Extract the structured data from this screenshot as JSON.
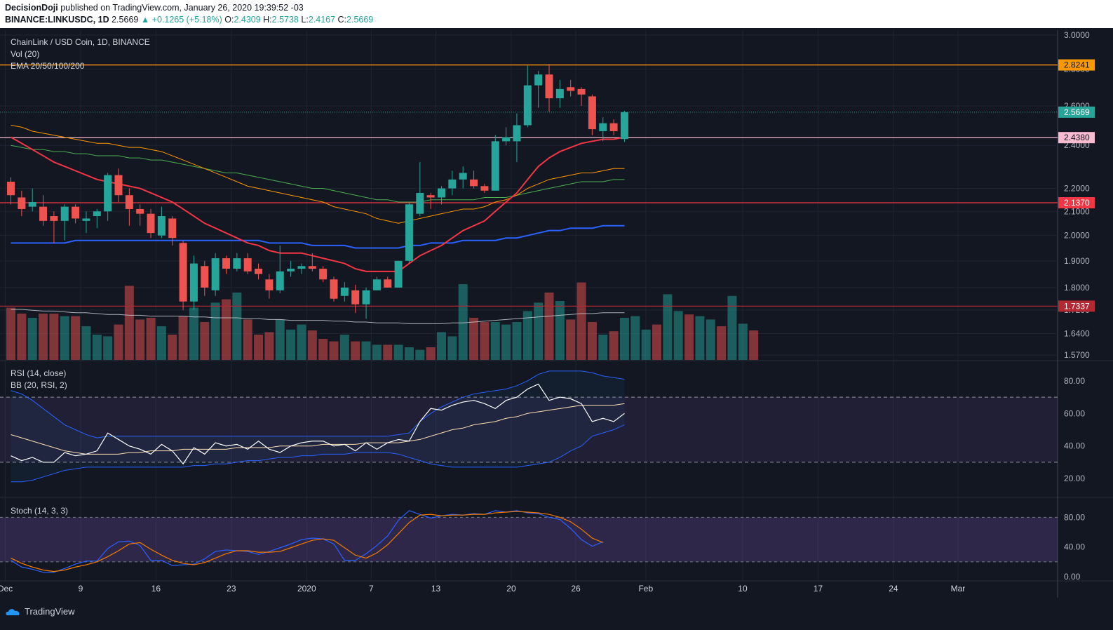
{
  "header": {
    "author": "DecisionDoji",
    "published_text": "published on TradingView.com, January 26, 2020 19:39:52 -03",
    "symbol": "BINANCE:LINKUSDC, 1D",
    "last": "2.5669",
    "change": "▲ +0.1265 (+5.18%)",
    "o_label": "O:",
    "o": "2.4309",
    "h_label": "H:",
    "h": "2.5738",
    "l_label": "L:",
    "l": "2.4167",
    "c_label": "C:",
    "c": "2.5669"
  },
  "legends": {
    "main_title": "ChainLink / USD Coin, 1D, BINANCE",
    "vol": "Vol (20)",
    "ema": "EMA 20/50/100/200",
    "rsi": "RSI (14, close)",
    "bb": "BB (20, RSI, 2)",
    "stoch": "Stoch (14, 3, 3)"
  },
  "footer": {
    "brand": "TradingView"
  },
  "colors": {
    "background": "#131722",
    "up": "#26a69a",
    "down": "#ef5350",
    "ema20": "#f23645",
    "ema50": "#ff9800",
    "ema100": "#4caf50",
    "ema200": "#2962ff",
    "hline_orange": "#ff9800",
    "hline_red": "#f23645",
    "hline_darkred": "#b22833",
    "hline_pink": "#f8bbd0"
  },
  "chart_data": {
    "type": "candlestick",
    "x_ticks": [
      "Dec",
      "9",
      "16",
      "23",
      "2020",
      "7",
      "13",
      "20",
      "26",
      "Feb",
      "10",
      "17",
      "24",
      "Mar"
    ],
    "price_scale": "log",
    "price_ticks": [
      "3.0000",
      "2.8000",
      "2.6000",
      "2.4000",
      "2.2000",
      "2.1000",
      "2.0000",
      "1.9000",
      "1.8000",
      "1.7200",
      "1.6400",
      "1.5700"
    ],
    "price_badges": [
      {
        "value": "2.8241",
        "color": "#ff9800",
        "text_color": "#131722"
      },
      {
        "value": "2.5669",
        "color": "#26a69a",
        "text_color": "#ffffff"
      },
      {
        "value": "2.4380",
        "color": "#f8bbd0",
        "text_color": "#131722"
      },
      {
        "value": "2.1370",
        "color": "#f23645",
        "text_color": "#ffffff"
      },
      {
        "value": "1.7337",
        "color": "#b22833",
        "text_color": "#ffffff"
      }
    ],
    "horizontal_lines": [
      {
        "price": 2.8241,
        "color": "#ff9800",
        "style": "solid"
      },
      {
        "price": 2.5669,
        "color": "#26a69a",
        "style": "dotted"
      },
      {
        "price": 2.438,
        "color": "#f8bbd0",
        "style": "solid"
      },
      {
        "price": 2.137,
        "color": "#f23645",
        "style": "solid"
      },
      {
        "price": 1.7337,
        "color": "#b22833",
        "style": "solid"
      }
    ],
    "candles": [
      {
        "o": 2.23,
        "h": 2.25,
        "l": 2.13,
        "c": 2.17
      },
      {
        "o": 2.16,
        "h": 2.19,
        "l": 2.08,
        "c": 2.11
      },
      {
        "o": 2.12,
        "h": 2.2,
        "l": 2.1,
        "c": 2.14
      },
      {
        "o": 2.12,
        "h": 2.17,
        "l": 2.04,
        "c": 2.06
      },
      {
        "o": 2.08,
        "h": 2.1,
        "l": 1.97,
        "c": 2.06
      },
      {
        "o": 2.06,
        "h": 2.13,
        "l": 1.98,
        "c": 2.12
      },
      {
        "o": 2.12,
        "h": 2.13,
        "l": 2.05,
        "c": 2.07
      },
      {
        "o": 2.06,
        "h": 2.1,
        "l": 2.01,
        "c": 2.07
      },
      {
        "o": 2.08,
        "h": 2.11,
        "l": 2.03,
        "c": 2.1
      },
      {
        "o": 2.1,
        "h": 2.27,
        "l": 2.06,
        "c": 2.26
      },
      {
        "o": 2.26,
        "h": 2.29,
        "l": 2.14,
        "c": 2.17
      },
      {
        "o": 2.17,
        "h": 2.2,
        "l": 2.04,
        "c": 2.11
      },
      {
        "o": 2.11,
        "h": 2.13,
        "l": 2.04,
        "c": 2.09
      },
      {
        "o": 2.09,
        "h": 2.11,
        "l": 1.99,
        "c": 2.01
      },
      {
        "o": 2.0,
        "h": 2.12,
        "l": 1.99,
        "c": 2.08
      },
      {
        "o": 2.07,
        "h": 2.08,
        "l": 1.96,
        "c": 1.99
      },
      {
        "o": 1.97,
        "h": 1.98,
        "l": 1.72,
        "c": 1.75
      },
      {
        "o": 1.75,
        "h": 1.92,
        "l": 1.72,
        "c": 1.89
      },
      {
        "o": 1.88,
        "h": 1.9,
        "l": 1.77,
        "c": 1.8
      },
      {
        "o": 1.79,
        "h": 1.93,
        "l": 1.77,
        "c": 1.91
      },
      {
        "o": 1.91,
        "h": 1.92,
        "l": 1.85,
        "c": 1.87
      },
      {
        "o": 1.87,
        "h": 1.93,
        "l": 1.86,
        "c": 1.91
      },
      {
        "o": 1.91,
        "h": 1.93,
        "l": 1.85,
        "c": 1.86
      },
      {
        "o": 1.87,
        "h": 1.89,
        "l": 1.83,
        "c": 1.85
      },
      {
        "o": 1.83,
        "h": 1.85,
        "l": 1.76,
        "c": 1.79
      },
      {
        "o": 1.79,
        "h": 1.96,
        "l": 1.78,
        "c": 1.86
      },
      {
        "o": 1.86,
        "h": 1.9,
        "l": 1.84,
        "c": 1.87
      },
      {
        "o": 1.87,
        "h": 1.89,
        "l": 1.85,
        "c": 1.88
      },
      {
        "o": 1.88,
        "h": 1.93,
        "l": 1.86,
        "c": 1.87
      },
      {
        "o": 1.87,
        "h": 1.88,
        "l": 1.82,
        "c": 1.83
      },
      {
        "o": 1.83,
        "h": 1.84,
        "l": 1.75,
        "c": 1.76
      },
      {
        "o": 1.77,
        "h": 1.82,
        "l": 1.75,
        "c": 1.8
      },
      {
        "o": 1.79,
        "h": 1.81,
        "l": 1.71,
        "c": 1.74
      },
      {
        "o": 1.74,
        "h": 1.8,
        "l": 1.69,
        "c": 1.79
      },
      {
        "o": 1.79,
        "h": 1.84,
        "l": 1.79,
        "c": 1.83
      },
      {
        "o": 1.83,
        "h": 1.84,
        "l": 1.8,
        "c": 1.8
      },
      {
        "o": 1.8,
        "h": 1.9,
        "l": 1.8,
        "c": 1.9
      },
      {
        "o": 1.9,
        "h": 2.14,
        "l": 1.89,
        "c": 2.13
      },
      {
        "o": 2.09,
        "h": 2.32,
        "l": 2.08,
        "c": 2.18
      },
      {
        "o": 2.17,
        "h": 2.18,
        "l": 2.11,
        "c": 2.16
      },
      {
        "o": 2.16,
        "h": 2.21,
        "l": 2.13,
        "c": 2.2
      },
      {
        "o": 2.2,
        "h": 2.28,
        "l": 2.17,
        "c": 2.24
      },
      {
        "o": 2.24,
        "h": 2.3,
        "l": 2.2,
        "c": 2.27
      },
      {
        "o": 2.24,
        "h": 2.28,
        "l": 2.2,
        "c": 2.21
      },
      {
        "o": 2.21,
        "h": 2.22,
        "l": 2.18,
        "c": 2.19
      },
      {
        "o": 2.19,
        "h": 2.45,
        "l": 2.19,
        "c": 2.42
      },
      {
        "o": 2.42,
        "h": 2.49,
        "l": 2.4,
        "c": 2.44
      },
      {
        "o": 2.42,
        "h": 2.56,
        "l": 2.32,
        "c": 2.5
      },
      {
        "o": 2.5,
        "h": 2.82,
        "l": 2.49,
        "c": 2.71
      },
      {
        "o": 2.71,
        "h": 2.79,
        "l": 2.59,
        "c": 2.77
      },
      {
        "o": 2.77,
        "h": 2.83,
        "l": 2.57,
        "c": 2.64
      },
      {
        "o": 2.64,
        "h": 2.74,
        "l": 2.59,
        "c": 2.69
      },
      {
        "o": 2.7,
        "h": 2.74,
        "l": 2.65,
        "c": 2.68
      },
      {
        "o": 2.69,
        "h": 2.7,
        "l": 2.6,
        "c": 2.66
      },
      {
        "o": 2.65,
        "h": 2.66,
        "l": 2.45,
        "c": 2.48
      },
      {
        "o": 2.47,
        "h": 2.54,
        "l": 2.42,
        "c": 2.51
      },
      {
        "o": 2.51,
        "h": 2.53,
        "l": 2.45,
        "c": 2.47
      },
      {
        "o": 2.4309,
        "h": 2.5738,
        "l": 2.4167,
        "c": 2.5669
      }
    ],
    "volume": [
      62,
      55,
      50,
      55,
      55,
      52,
      52,
      40,
      30,
      28,
      42,
      88,
      48,
      50,
      40,
      30,
      52,
      62,
      45,
      68,
      72,
      80,
      48,
      30,
      33,
      48,
      36,
      42,
      35,
      25,
      22,
      30,
      22,
      22,
      18,
      18,
      18,
      15,
      12,
      15,
      33,
      28,
      90,
      50,
      45,
      45,
      42,
      45,
      58,
      68,
      80,
      70,
      48,
      92,
      45,
      30,
      34,
      50,
      52,
      36,
      42,
      78,
      58,
      54,
      52,
      48,
      40,
      76,
      43,
      35
    ],
    "ema20": [
      2.44,
      2.41,
      2.38,
      2.35,
      2.32,
      2.3,
      2.28,
      2.26,
      2.24,
      2.23,
      2.22,
      2.21,
      2.2,
      2.18,
      2.16,
      2.14,
      2.11,
      2.08,
      2.05,
      2.03,
      2.01,
      1.99,
      1.97,
      1.96,
      1.94,
      1.93,
      1.93,
      1.93,
      1.92,
      1.91,
      1.9,
      1.89,
      1.87,
      1.86,
      1.86,
      1.86,
      1.86,
      1.89,
      1.92,
      1.94,
      1.96,
      1.99,
      2.02,
      2.04,
      2.06,
      2.1,
      2.14,
      2.18,
      2.24,
      2.3,
      2.34,
      2.37,
      2.39,
      2.41,
      2.42,
      2.43,
      2.43,
      2.44
    ],
    "ema50": [
      2.5,
      2.49,
      2.47,
      2.46,
      2.45,
      2.44,
      2.43,
      2.42,
      2.41,
      2.41,
      2.4,
      2.39,
      2.39,
      2.38,
      2.37,
      2.35,
      2.33,
      2.31,
      2.29,
      2.27,
      2.25,
      2.23,
      2.21,
      2.2,
      2.19,
      2.18,
      2.17,
      2.16,
      2.15,
      2.14,
      2.12,
      2.11,
      2.1,
      2.09,
      2.07,
      2.06,
      2.05,
      2.06,
      2.07,
      2.08,
      2.09,
      2.1,
      2.11,
      2.11,
      2.12,
      2.14,
      2.15,
      2.17,
      2.2,
      2.22,
      2.24,
      2.25,
      2.26,
      2.27,
      2.27,
      2.28,
      2.29,
      2.29
    ],
    "ema100": [
      2.4,
      2.39,
      2.38,
      2.38,
      2.37,
      2.37,
      2.36,
      2.36,
      2.35,
      2.35,
      2.35,
      2.34,
      2.34,
      2.33,
      2.33,
      2.32,
      2.31,
      2.3,
      2.29,
      2.28,
      2.27,
      2.27,
      2.26,
      2.25,
      2.24,
      2.23,
      2.22,
      2.21,
      2.2,
      2.2,
      2.19,
      2.18,
      2.17,
      2.16,
      2.15,
      2.15,
      2.14,
      2.14,
      2.14,
      2.15,
      2.15,
      2.15,
      2.15,
      2.15,
      2.16,
      2.16,
      2.16,
      2.17,
      2.18,
      2.19,
      2.2,
      2.21,
      2.22,
      2.23,
      2.23,
      2.23,
      2.24,
      2.24
    ],
    "ema200": [
      1.97,
      1.97,
      1.97,
      1.97,
      1.97,
      1.97,
      1.98,
      1.98,
      1.98,
      1.98,
      1.98,
      1.98,
      1.98,
      1.98,
      1.98,
      1.98,
      1.98,
      1.98,
      1.98,
      1.98,
      1.98,
      1.98,
      1.98,
      1.98,
      1.97,
      1.97,
      1.97,
      1.97,
      1.96,
      1.96,
      1.96,
      1.96,
      1.95,
      1.95,
      1.95,
      1.95,
      1.95,
      1.96,
      1.96,
      1.97,
      1.97,
      1.97,
      1.98,
      1.98,
      1.98,
      1.98,
      1.99,
      1.99,
      2.0,
      2.01,
      2.02,
      2.02,
      2.03,
      2.03,
      2.03,
      2.04,
      2.04,
      2.04
    ],
    "vol_ma": [
      60,
      60,
      59,
      58,
      58,
      57,
      56,
      56,
      55,
      54,
      54,
      53,
      53,
      52,
      52,
      52,
      52,
      51,
      51,
      50,
      50,
      50,
      49,
      49,
      48,
      48,
      47,
      47,
      47,
      47,
      46,
      46,
      45,
      45,
      44,
      44,
      44,
      43,
      43,
      43,
      43,
      44,
      44,
      45,
      46,
      47,
      48,
      49,
      50,
      51,
      52,
      53,
      54,
      55,
      55,
      56,
      56,
      56
    ],
    "rsi_ticks": [
      "80.00",
      "60.00",
      "40.00",
      "20.00"
    ],
    "rsi_band": [
      30,
      70
    ],
    "rsi": [
      34,
      31,
      33,
      30,
      30,
      36,
      34,
      35,
      37,
      48,
      44,
      40,
      38,
      35,
      41,
      37,
      29,
      39,
      35,
      42,
      40,
      41,
      38,
      43,
      38,
      36,
      40,
      42,
      43,
      43,
      40,
      41,
      37,
      42,
      38,
      42,
      44,
      43,
      55,
      63,
      62,
      65,
      67,
      68,
      66,
      63,
      68,
      70,
      75,
      78,
      68,
      70,
      69,
      66,
      55,
      57,
      55,
      60
    ],
    "rsi_ma": [
      47,
      45,
      43,
      41,
      39,
      37,
      36,
      35,
      35,
      35,
      35,
      36,
      36,
      37,
      37,
      37,
      38,
      38,
      38,
      38,
      38,
      39,
      39,
      39,
      39,
      40,
      40,
      40,
      40,
      41,
      41,
      41,
      41,
      42,
      42,
      42,
      42,
      43,
      44,
      46,
      48,
      50,
      51,
      53,
      54,
      55,
      57,
      58,
      60,
      61,
      62,
      63,
      64,
      65,
      65,
      65,
      65,
      66
    ],
    "bb_upper": [
      74,
      72,
      68,
      63,
      58,
      53,
      50,
      47,
      45,
      46,
      46,
      46,
      46,
      46,
      46,
      46,
      46,
      46,
      46,
      46,
      46,
      46,
      46,
      46,
      46,
      46,
      46,
      46,
      46,
      46,
      46,
      46,
      46,
      46,
      46,
      46,
      47,
      48,
      55,
      60,
      64,
      67,
      70,
      72,
      73,
      74,
      75,
      77,
      80,
      84,
      86,
      86,
      86,
      86,
      85,
      83,
      82,
      81
    ],
    "bb_lower": [
      18,
      18,
      19,
      21,
      23,
      25,
      26,
      27,
      27,
      27,
      27,
      27,
      27,
      27,
      27,
      27,
      27,
      28,
      28,
      29,
      29,
      30,
      31,
      31,
      32,
      33,
      33,
      34,
      34,
      35,
      35,
      35,
      36,
      36,
      36,
      36,
      35,
      33,
      31,
      29,
      28,
      27,
      27,
      27,
      27,
      27,
      27,
      27,
      28,
      29,
      30,
      33,
      37,
      40,
      46,
      48,
      50,
      53
    ],
    "stoch_ticks": [
      "80.00",
      "40.00",
      "0.00"
    ],
    "stoch_band": [
      20,
      80
    ],
    "stoch_k": [
      22,
      13,
      10,
      6,
      6,
      11,
      17,
      21,
      21,
      38,
      47,
      48,
      42,
      22,
      22,
      15,
      16,
      17,
      24,
      34,
      36,
      35,
      34,
      30,
      34,
      39,
      44,
      50,
      52,
      51,
      44,
      22,
      22,
      31,
      42,
      55,
      76,
      89,
      84,
      79,
      82,
      84,
      83,
      85,
      84,
      89,
      87,
      89,
      86,
      85,
      80,
      77,
      65,
      50,
      41,
      47
    ],
    "stoch_d": [
      25,
      18,
      13,
      9,
      7,
      9,
      13,
      16,
      20,
      27,
      35,
      44,
      46,
      37,
      29,
      22,
      18,
      16,
      19,
      25,
      31,
      35,
      35,
      33,
      33,
      34,
      39,
      44,
      49,
      51,
      49,
      39,
      29,
      25,
      32,
      43,
      58,
      73,
      83,
      84,
      82,
      83,
      83,
      84,
      84,
      86,
      87,
      88,
      87,
      86,
      84,
      80,
      74,
      64,
      52,
      46
    ]
  }
}
